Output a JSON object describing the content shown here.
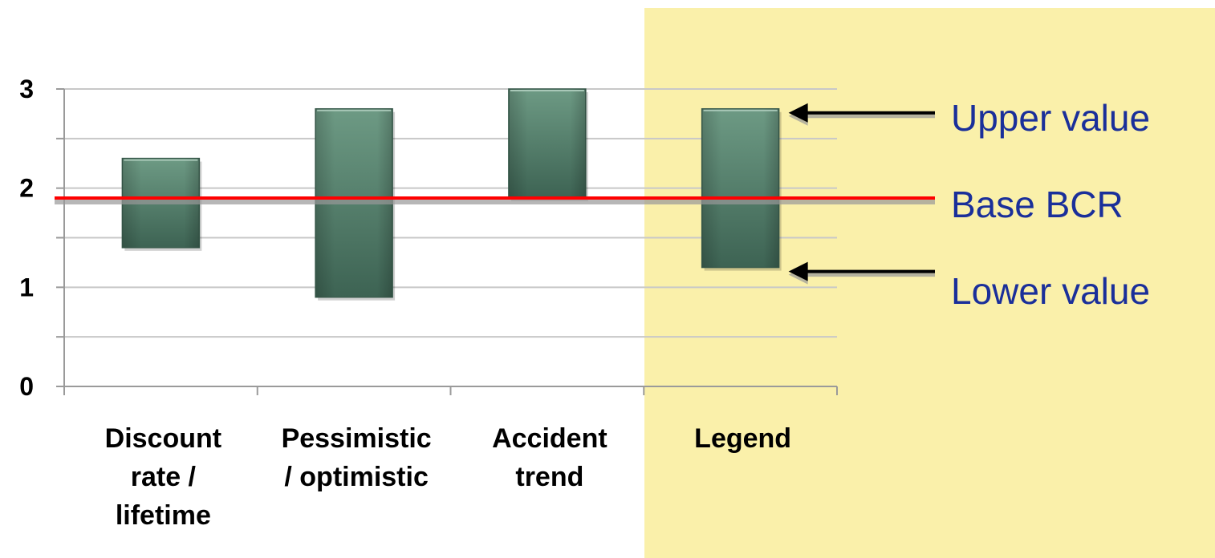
{
  "chart_data": {
    "type": "bar",
    "subtype": "floating-range",
    "categories": [
      [
        "Discount",
        "rate /",
        "lifetime"
      ],
      [
        "Pessimistic",
        "/ optimistic"
      ],
      [
        "Accident",
        "trend"
      ],
      [
        "Legend"
      ]
    ],
    "ranges": [
      {
        "low": 1.4,
        "high": 2.3
      },
      {
        "low": 0.9,
        "high": 2.8
      },
      {
        "low": 1.9,
        "high": 3.0
      },
      {
        "low": 1.2,
        "high": 2.8
      }
    ],
    "base_bcr": 1.9,
    "ylim": [
      0,
      3
    ],
    "yticks": [
      "0",
      "1",
      "2",
      "3"
    ],
    "grid": true,
    "legend_annotations": {
      "upper": "Upper value",
      "base": "Base BCR",
      "lower": "Lower value"
    },
    "colors": {
      "bar": "#4e7a66",
      "base_line": "#ff0000",
      "legend_panel": "#faf0aa",
      "legend_text": "#1a2f9a",
      "grid": "#c8c8c8"
    }
  }
}
